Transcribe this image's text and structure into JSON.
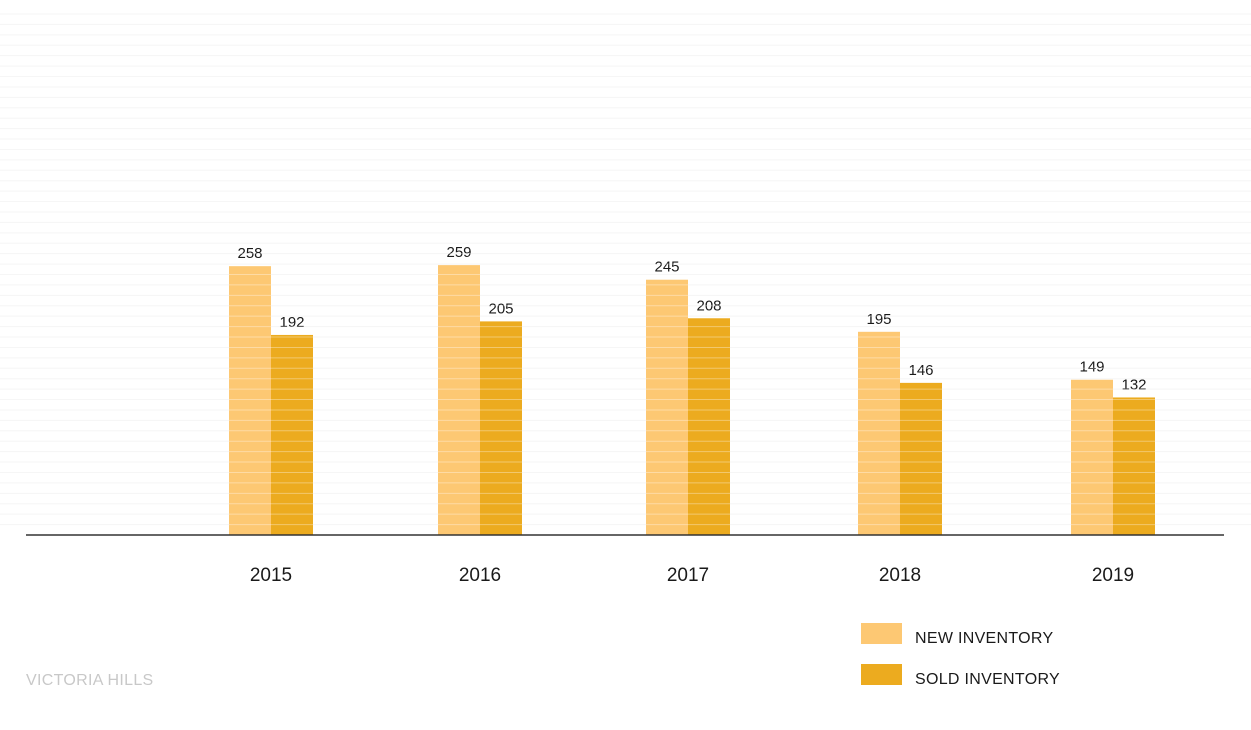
{
  "chart_data": {
    "type": "bar",
    "categories": [
      "2015",
      "2016",
      "2017",
      "2018",
      "2019"
    ],
    "series": [
      {
        "name": "NEW INVENTORY",
        "values": [
          258,
          259,
          245,
          195,
          149
        ],
        "color": "#FDC873"
      },
      {
        "name": "SOLD INVENTORY",
        "values": [
          192,
          205,
          208,
          146,
          132
        ],
        "color": "#ECAB1F"
      }
    ],
    "ylim": [
      0,
      500
    ],
    "grid": true,
    "legend": "bottom-right"
  },
  "brand": {
    "label": "VICTORIA HILLS"
  },
  "colors": {
    "grid": "#f2f2f2",
    "axis": "#333333"
  }
}
